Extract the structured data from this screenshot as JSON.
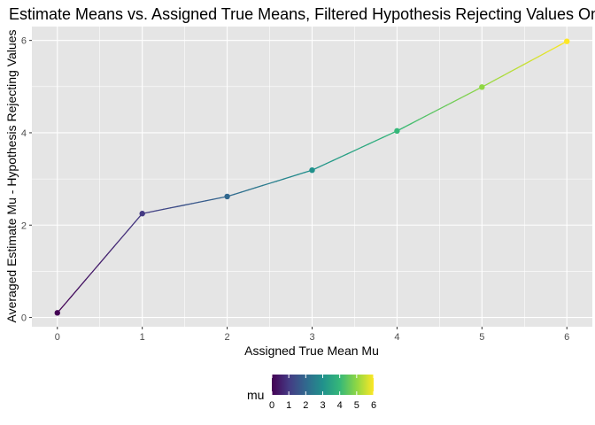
{
  "chart_data": {
    "type": "line",
    "title": "Estimate Means vs. Assigned True Means, Filtered Hypothesis Rejecting Values Only",
    "xlabel": "Assigned True Mean Mu",
    "ylabel": "Averaged Estimate Mu - Hypothesis Rejecting Values",
    "x": [
      0,
      1,
      2,
      3,
      4,
      5,
      6
    ],
    "y": [
      0.1,
      2.25,
      2.62,
      3.19,
      4.04,
      4.99,
      5.98
    ],
    "color_values": [
      0,
      1,
      2,
      3,
      4,
      5,
      6
    ],
    "xlim": [
      -0.3,
      6.3
    ],
    "ylim": [
      -0.2,
      6.3
    ],
    "x_ticks": [
      0,
      1,
      2,
      3,
      4,
      5,
      6
    ],
    "x_tick_labels": [
      "0",
      "1",
      "2",
      "3",
      "4",
      "5",
      "6"
    ],
    "y_ticks": [
      0,
      2,
      4,
      6
    ],
    "y_tick_labels": [
      "0",
      "2",
      "4",
      "6"
    ],
    "grid": true,
    "panel_background": "#e5e5e5",
    "grid_color": "#ffffff",
    "legend": {
      "title": "mu",
      "position": "bottom",
      "type": "colorbar",
      "scale": "viridis",
      "min": 0,
      "max": 6,
      "tick_labels": [
        "0",
        "1",
        "2",
        "3",
        "4",
        "5",
        "6"
      ]
    }
  }
}
